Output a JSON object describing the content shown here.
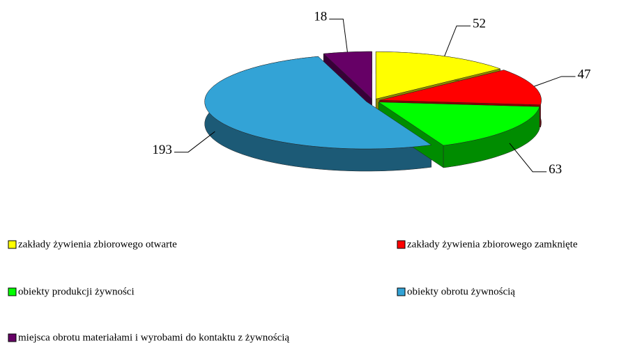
{
  "chart_data": {
    "type": "pie",
    "labels": [
      "zakłady żywienia zbiorowego otwarte",
      "zakłady żywienia zbiorowego zamknięte",
      "obiekty produkcji żywności",
      "obiekty obrotu żywnością",
      "miejsca obrotu materiałami i wyrobami do kontaktu z żywnością"
    ],
    "values": [
      52,
      47,
      63,
      193,
      18
    ],
    "colors": [
      "#ffff00",
      "#ff0000",
      "#00ff00",
      "#33a3d6",
      "#660066"
    ]
  }
}
